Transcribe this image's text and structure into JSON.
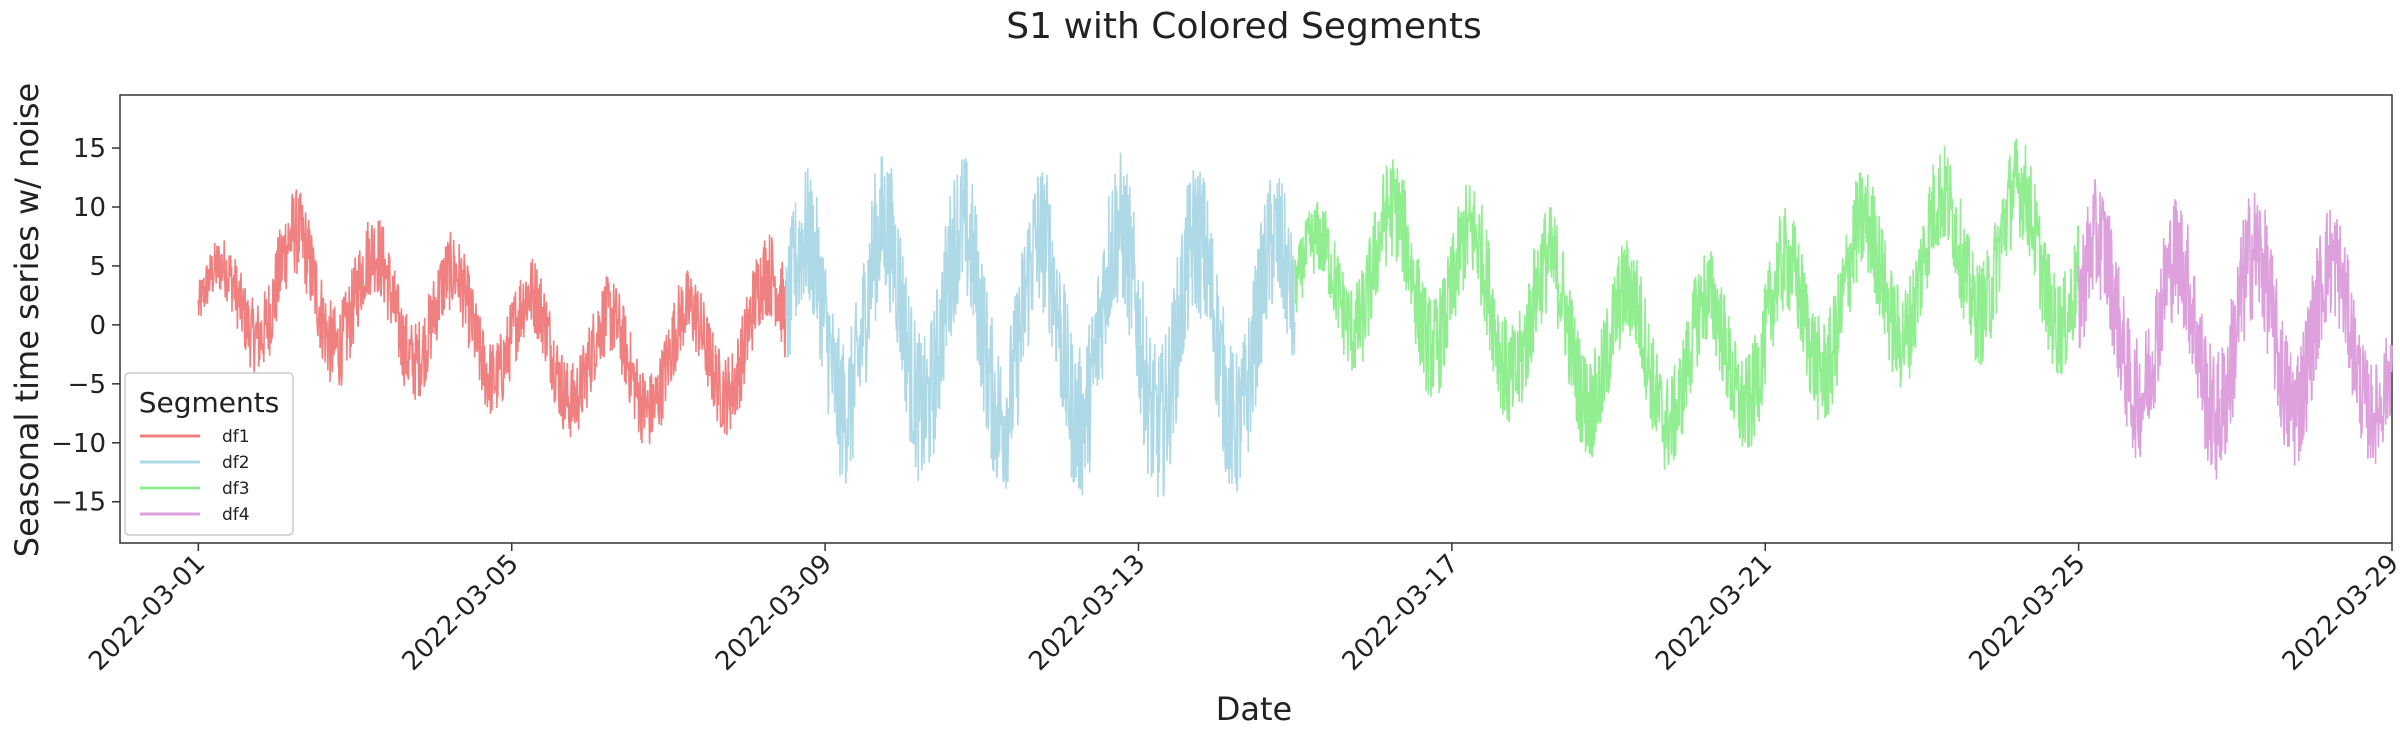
{
  "chart_data": {
    "type": "line",
    "title": "S1 with Colored Segments",
    "xlabel": "Date",
    "ylabel": "Seasonal time series w/ noise",
    "xlim": [
      "2022-02-28",
      "2022-03-29"
    ],
    "ylim": [
      -18.5,
      19.5
    ],
    "x_ticks": [
      "2022-03-01",
      "2022-03-05",
      "2022-03-09",
      "2022-03-13",
      "2022-03-17",
      "2022-03-21",
      "2022-03-25",
      "2022-03-29"
    ],
    "y_ticks": [
      -15,
      -10,
      -5,
      0,
      5,
      10,
      15
    ],
    "grid": false,
    "legend": {
      "title": "Segments",
      "position": "lower-left"
    },
    "series": [
      {
        "name": "df1",
        "color": "#f08080",
        "x_start": "2022-03-01",
        "x_end": "2022-03-08 12:00",
        "envelope_top": [
          6,
          12,
          10,
          8,
          6,
          4,
          5,
          9
        ],
        "envelope_bottom": [
          -3,
          -5,
          -6,
          -7,
          -9,
          -11,
          -10,
          -8
        ]
      },
      {
        "name": "df2",
        "color": "#add8e6",
        "x_start": "2022-03-08 12:00",
        "x_end": "2022-03-15",
        "envelope_top": [
          13,
          15,
          15,
          14,
          15,
          14,
          13
        ],
        "envelope_bottom": [
          -13,
          -14,
          -14,
          -15,
          -15,
          -16,
          -13
        ]
      },
      {
        "name": "df3",
        "color": "#90ee90",
        "x_start": "2022-03-15",
        "x_end": "2022-03-25",
        "envelope_top": [
          9,
          15,
          13,
          11,
          8,
          6,
          9,
          13,
          15,
          17,
          14
        ],
        "envelope_bottom": [
          -3,
          -5,
          -7,
          -10,
          -12,
          -13,
          -11,
          -8,
          -5,
          -3,
          -5
        ]
      },
      {
        "name": "df4",
        "color": "#dda0dd",
        "x_start": "2022-03-25",
        "x_end": "2022-03-29",
        "envelope_top": [
          13,
          11,
          12,
          12,
          6
        ],
        "envelope_bottom": [
          -10,
          -12,
          -14,
          -12,
          -12
        ]
      }
    ]
  }
}
